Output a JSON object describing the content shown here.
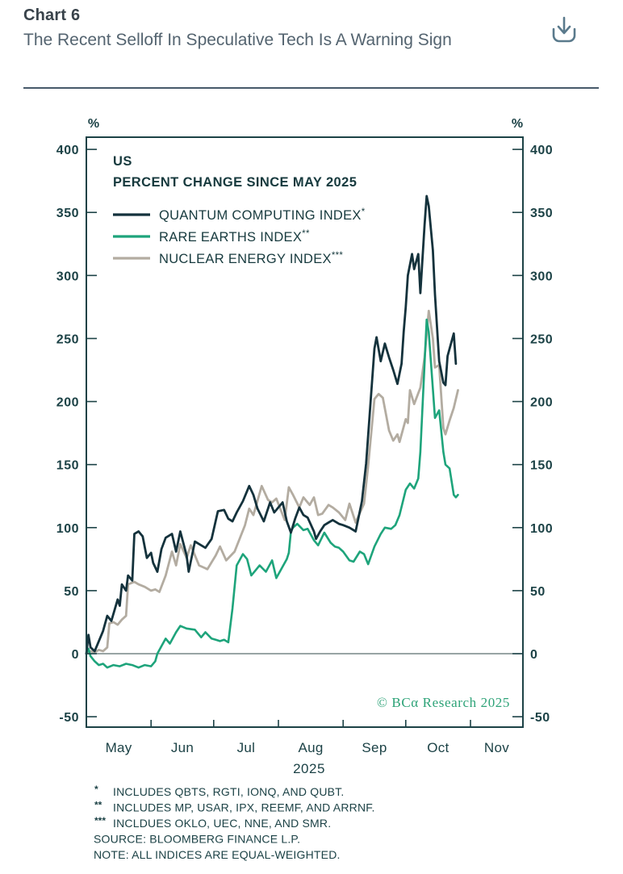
{
  "header": {
    "chart_label": "Chart 6",
    "title": "The Recent Selloff In Speculative Tech Is A Warning Sign",
    "download_icon": "download-icon"
  },
  "chart_data": {
    "type": "line",
    "title": "US",
    "subtitle": "PERCENT CHANGE SINCE MAY 2025",
    "unit_left": "%",
    "unit_right": "%",
    "ylim": [
      -50,
      400
    ],
    "y_ticks": [
      400,
      350,
      300,
      250,
      200,
      150,
      100,
      50,
      0,
      -50
    ],
    "x_months": [
      "May",
      "Jun",
      "Jul",
      "Aug",
      "Sep",
      "Oct",
      "Nov"
    ],
    "x_year": "2025",
    "x_unit": "days since 2025-05-01",
    "grid": "off",
    "zero_line": true,
    "legend_position": "top-left-inside",
    "axis_color": "#1c4246",
    "zero_line_color": "#5b6e6e",
    "series": [
      {
        "label": "QUANTUM COMPUTING INDEX",
        "marker": "*",
        "color": "#14323c",
        "width": 2.8,
        "points": [
          [
            0,
            0
          ],
          [
            1,
            15
          ],
          [
            2,
            5
          ],
          [
            4,
            2
          ],
          [
            6,
            10
          ],
          [
            8,
            18
          ],
          [
            10,
            30
          ],
          [
            12,
            26
          ],
          [
            15,
            43
          ],
          [
            16,
            38
          ],
          [
            17,
            55
          ],
          [
            19,
            50
          ],
          [
            20,
            62
          ],
          [
            22,
            58
          ],
          [
            23,
            95
          ],
          [
            25,
            97
          ],
          [
            27,
            93
          ],
          [
            29,
            76
          ],
          [
            31,
            80
          ],
          [
            32,
            72
          ],
          [
            34,
            65
          ],
          [
            36,
            83
          ],
          [
            38,
            92
          ],
          [
            41,
            95
          ],
          [
            43,
            81
          ],
          [
            45,
            97
          ],
          [
            48,
            78
          ],
          [
            49,
            65
          ],
          [
            52,
            89
          ],
          [
            55,
            86
          ],
          [
            57,
            84
          ],
          [
            60,
            91
          ],
          [
            63,
            113
          ],
          [
            66,
            114
          ],
          [
            68,
            107
          ],
          [
            70,
            105
          ],
          [
            72,
            112
          ],
          [
            75,
            121
          ],
          [
            78,
            133
          ],
          [
            80,
            126
          ],
          [
            82,
            115
          ],
          [
            85,
            105
          ],
          [
            88,
            120
          ],
          [
            90,
            112
          ],
          [
            94,
            120
          ],
          [
            96,
            105
          ],
          [
            98,
            96
          ],
          [
            100,
            107
          ],
          [
            102,
            116
          ],
          [
            104,
            110
          ],
          [
            106,
            108
          ],
          [
            109,
            97
          ],
          [
            110,
            91
          ],
          [
            112,
            97
          ],
          [
            114,
            102
          ],
          [
            116,
            104
          ],
          [
            118,
            106
          ],
          [
            121,
            103
          ],
          [
            123,
            102
          ],
          [
            126,
            100
          ],
          [
            129,
            97
          ],
          [
            132,
            121
          ],
          [
            134,
            151
          ],
          [
            136,
            196
          ],
          [
            138,
            242
          ],
          [
            139,
            251
          ],
          [
            141,
            232
          ],
          [
            143,
            246
          ],
          [
            145,
            235
          ],
          [
            147,
            225
          ],
          [
            149,
            214
          ],
          [
            151,
            230
          ],
          [
            152,
            255
          ],
          [
            153,
            275
          ],
          [
            154,
            300
          ],
          [
            156,
            317
          ],
          [
            157,
            305
          ],
          [
            159,
            317
          ],
          [
            160,
            286
          ],
          [
            162,
            340
          ],
          [
            163,
            363
          ],
          [
            164,
            355
          ],
          [
            166,
            320
          ],
          [
            167,
            285
          ],
          [
            169,
            232
          ],
          [
            171,
            215
          ],
          [
            172,
            213
          ],
          [
            173,
            236
          ],
          [
            175,
            248
          ],
          [
            176,
            254
          ],
          [
            177,
            230
          ]
        ]
      },
      {
        "label": "RARE EARTHS INDEX",
        "marker": "**",
        "color": "#1ea47b",
        "width": 2.6,
        "points": [
          [
            0,
            0
          ],
          [
            1,
            4
          ],
          [
            2,
            -2
          ],
          [
            4,
            -6
          ],
          [
            6,
            -9
          ],
          [
            8,
            -8
          ],
          [
            10,
            -11
          ],
          [
            13,
            -9
          ],
          [
            16,
            -10
          ],
          [
            19,
            -8
          ],
          [
            22,
            -9
          ],
          [
            25,
            -11
          ],
          [
            28,
            -9
          ],
          [
            31,
            -10
          ],
          [
            33,
            -6
          ],
          [
            34,
            0
          ],
          [
            36,
            6
          ],
          [
            38,
            12
          ],
          [
            40,
            8
          ],
          [
            43,
            17
          ],
          [
            45,
            22
          ],
          [
            48,
            20
          ],
          [
            52,
            19
          ],
          [
            55,
            13
          ],
          [
            57,
            17
          ],
          [
            60,
            12
          ],
          [
            62,
            11
          ],
          [
            64,
            10
          ],
          [
            66,
            11
          ],
          [
            68,
            9
          ],
          [
            70,
            36
          ],
          [
            72,
            70
          ],
          [
            75,
            79
          ],
          [
            77,
            75
          ],
          [
            79,
            62
          ],
          [
            81,
            66
          ],
          [
            83,
            70
          ],
          [
            86,
            65
          ],
          [
            89,
            74
          ],
          [
            91,
            60
          ],
          [
            93,
            66
          ],
          [
            96,
            75
          ],
          [
            97,
            80
          ],
          [
            98,
            97
          ],
          [
            99,
            100
          ],
          [
            101,
            103
          ],
          [
            104,
            98
          ],
          [
            106,
            99
          ],
          [
            109,
            90
          ],
          [
            111,
            86
          ],
          [
            114,
            96
          ],
          [
            117,
            88
          ],
          [
            119,
            85
          ],
          [
            121,
            84
          ],
          [
            123,
            81
          ],
          [
            126,
            74
          ],
          [
            128,
            73
          ],
          [
            131,
            81
          ],
          [
            133,
            79
          ],
          [
            135,
            71
          ],
          [
            138,
            85
          ],
          [
            141,
            95
          ],
          [
            143,
            100
          ],
          [
            146,
            99
          ],
          [
            148,
            102
          ],
          [
            150,
            110
          ],
          [
            153,
            130
          ],
          [
            155,
            135
          ],
          [
            157,
            131
          ],
          [
            159,
            139
          ],
          [
            160,
            160
          ],
          [
            162,
            230
          ],
          [
            163,
            265
          ],
          [
            164,
            255
          ],
          [
            166,
            210
          ],
          [
            167,
            187
          ],
          [
            169,
            193
          ],
          [
            171,
            160
          ],
          [
            172,
            150
          ],
          [
            174,
            147
          ],
          [
            176,
            126
          ],
          [
            177,
            124
          ],
          [
            178,
            126
          ]
        ]
      },
      {
        "label": "NUCLEAR ENERGY INDEX",
        "marker": "***",
        "color": "#b3aca1",
        "width": 2.8,
        "points": [
          [
            0,
            0
          ],
          [
            2,
            2
          ],
          [
            4,
            1
          ],
          [
            6,
            3
          ],
          [
            8,
            2
          ],
          [
            10,
            5
          ],
          [
            11,
            24
          ],
          [
            13,
            25
          ],
          [
            15,
            23
          ],
          [
            17,
            27
          ],
          [
            19,
            30
          ],
          [
            20,
            55
          ],
          [
            23,
            57
          ],
          [
            25,
            55
          ],
          [
            28,
            53
          ],
          [
            31,
            50
          ],
          [
            33,
            51
          ],
          [
            35,
            49
          ],
          [
            38,
            62
          ],
          [
            41,
            81
          ],
          [
            43,
            70
          ],
          [
            45,
            87
          ],
          [
            48,
            76
          ],
          [
            50,
            86
          ],
          [
            54,
            70
          ],
          [
            58,
            67
          ],
          [
            62,
            78
          ],
          [
            64,
            85
          ],
          [
            67,
            74
          ],
          [
            71,
            81
          ],
          [
            76,
            102
          ],
          [
            78,
            115
          ],
          [
            80,
            110
          ],
          [
            84,
            133
          ],
          [
            87,
            122
          ],
          [
            89,
            120
          ],
          [
            91,
            123
          ],
          [
            95,
            106
          ],
          [
            97,
            132
          ],
          [
            99,
            126
          ],
          [
            102,
            116
          ],
          [
            104,
            124
          ],
          [
            107,
            118
          ],
          [
            109,
            124
          ],
          [
            111,
            110
          ],
          [
            113,
            111
          ],
          [
            116,
            118
          ],
          [
            118,
            116
          ],
          [
            121,
            112
          ],
          [
            124,
            106
          ],
          [
            126,
            119
          ],
          [
            129,
            104
          ],
          [
            133,
            119
          ],
          [
            135,
            149
          ],
          [
            138,
            202
          ],
          [
            140,
            206
          ],
          [
            142,
            203
          ],
          [
            145,
            177
          ],
          [
            147,
            169
          ],
          [
            149,
            174
          ],
          [
            150,
            168
          ],
          [
            153,
            186
          ],
          [
            154,
            183
          ],
          [
            155,
            209
          ],
          [
            157,
            198
          ],
          [
            160,
            211
          ],
          [
            162,
            235
          ],
          [
            164,
            272
          ],
          [
            166,
            250
          ],
          [
            167,
            227
          ],
          [
            169,
            229
          ],
          [
            171,
            179
          ],
          [
            172,
            174
          ],
          [
            174,
            185
          ],
          [
            176,
            195
          ],
          [
            178,
            209
          ]
        ]
      }
    ],
    "annotations": {
      "copyright": "© BCα Research 2025"
    }
  },
  "footnotes": [
    {
      "marker": "*",
      "text": "INCLUDES QBTS, RGTI, IONQ, AND QUBT."
    },
    {
      "marker": "**",
      "text": "INCLUDES MP, USAR, IPX, REEMF, AND ARRNF."
    },
    {
      "marker": "***",
      "text": "INCLDUES OKLO, UEC, NNE, AND SMR."
    },
    {
      "marker": "",
      "text": "SOURCE: BLOOMBERG FINANCE L.P."
    },
    {
      "marker": "",
      "text": "NOTE: ALL INDICES ARE EQUAL-WEIGHTED."
    }
  ]
}
